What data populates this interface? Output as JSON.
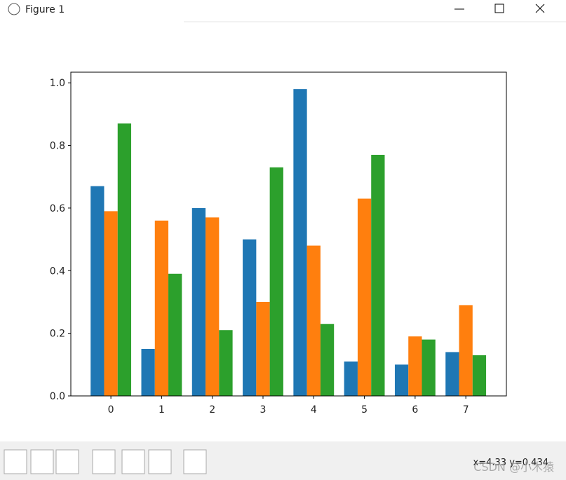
{
  "window_title": "Figure 1",
  "status_text": "x=4.33 y=0.434",
  "watermark": "CSDN @小木猿",
  "chart_data": {
    "type": "bar",
    "x": [
      0,
      1,
      2,
      3,
      4,
      5,
      6,
      7
    ],
    "series": [
      {
        "color": "#1f77b4",
        "values": [
          0.67,
          0.15,
          0.6,
          0.5,
          0.98,
          0.11,
          0.1,
          0.14
        ]
      },
      {
        "color": "#ff7f0e",
        "values": [
          0.59,
          0.56,
          0.57,
          0.3,
          0.48,
          0.63,
          0.19,
          0.29
        ]
      },
      {
        "color": "#2ca02c",
        "values": [
          0.87,
          0.39,
          0.21,
          0.73,
          0.23,
          0.77,
          0.18,
          0.13
        ]
      }
    ],
    "xlim": [
      -0.79,
      7.8
    ],
    "xticks": [
      0,
      1,
      2,
      3,
      4,
      5,
      6,
      7
    ],
    "ylim": [
      0,
      1.034
    ],
    "yticks": [
      {
        "value": 0,
        "label": "0.0"
      },
      0.2,
      0.4,
      0.6,
      0.8,
      {
        "value": 1,
        "label": "1.0"
      }
    ],
    "grid": false
  }
}
